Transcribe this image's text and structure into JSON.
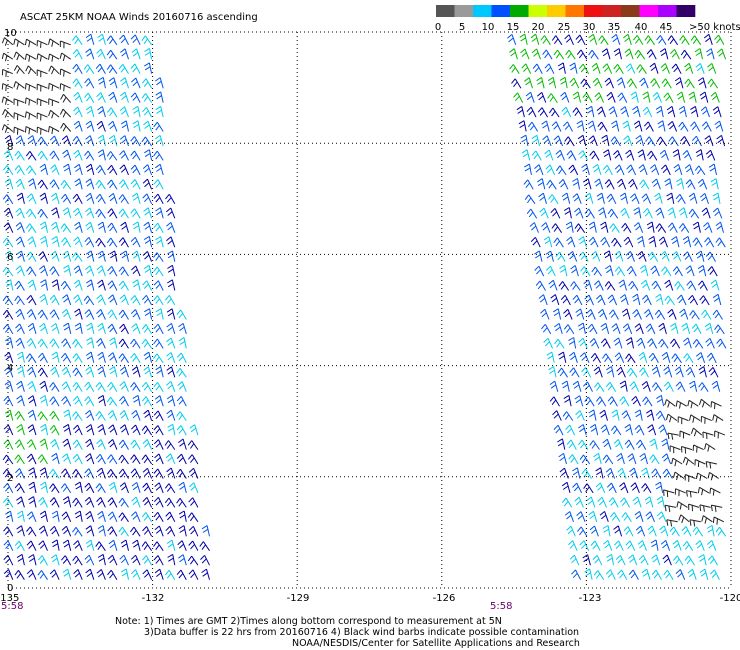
{
  "title": "ASCAT 25KM NOAA Winds 20160716 ascending",
  "legend": {
    "labels": [
      "0",
      "5",
      "10",
      "15",
      "20",
      "25",
      "30",
      "35",
      "40",
      "45",
      ">50 knots"
    ],
    "colors": [
      "#555555",
      "#9a9a9a",
      "#00c8ff",
      "#0050ff",
      "#00aa00",
      "#ccff00",
      "#ffcc00",
      "#ff7700",
      "#ee1111",
      "#cc2222",
      "#8a3a1a",
      "#ff00ff",
      "#aa00ff",
      "#330066"
    ]
  },
  "axes": {
    "x_ticks": [
      "-135",
      "-132",
      "-129",
      "-126",
      "-123",
      "-120"
    ],
    "y_ticks": [
      "0",
      "2",
      "4",
      "6",
      "8",
      "10"
    ],
    "x_range": [
      -135,
      -120
    ],
    "y_range": [
      0,
      10
    ]
  },
  "pass_times": [
    "5:58",
    "5:58"
  ],
  "notes": [
    "Note: 1) Times are GMT 2)Times along bottom correspond to measurement at 5N",
    "3)Data buffer is 22 hrs from 20160716 4) Black wind barbs indicate possible contamination",
    "NOAA/NESDIS/Center for Satellite Applications and Research"
  ],
  "swaths": [
    {
      "name": "west-swath",
      "lon_min_top": -135,
      "lon_max_top": -131.8,
      "lon_min_bottom": -135,
      "lon_max_bottom": -130.6
    },
    {
      "name": "east-swath",
      "lon_min_top": -124.6,
      "lon_max_top": -120,
      "lon_min_bottom": -123.2,
      "lon_max_bottom": -120
    }
  ],
  "barb_colors": {
    "contaminated": "#222222",
    "light": "#00ccee",
    "moderate": "#0055ee",
    "strong": "#0000aa",
    "high": "#00bb00"
  }
}
